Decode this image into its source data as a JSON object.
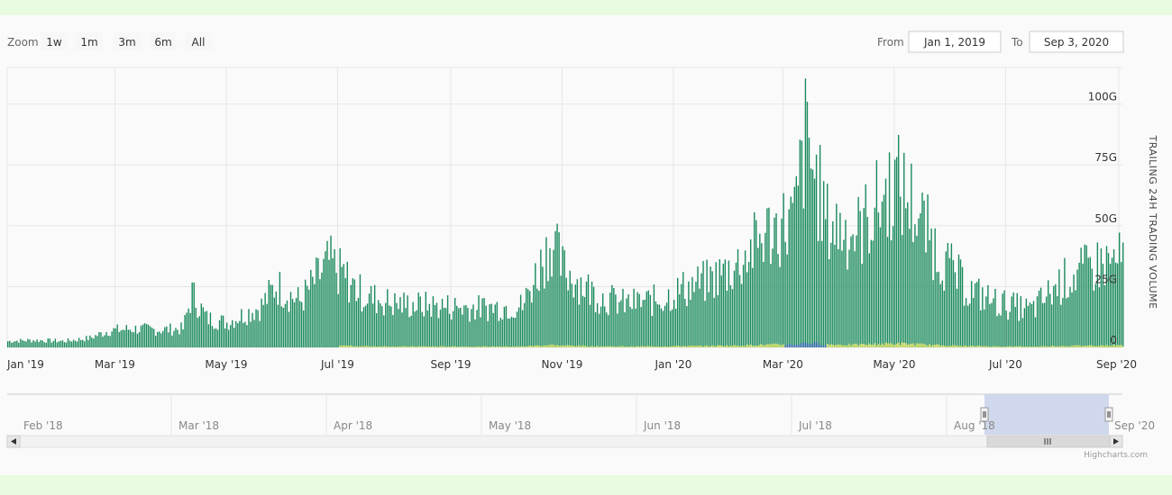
{
  "rangeSelector": {
    "zoom_label": "Zoom",
    "buttons": [
      "1w",
      "1m",
      "3m",
      "6m",
      "All"
    ],
    "from_label": "From",
    "from_value": "Jan 1, 2019",
    "to_label": "To",
    "to_value": "Sep 3, 2020"
  },
  "credits": "Highcharts.com",
  "colors": {
    "bar": "#1a8a5c",
    "bar_secondary": "#e8e84a",
    "bar_tertiary": "#3b5fc0",
    "navigator_mask": "#c8d1ea",
    "grid": "#e6e6e6"
  },
  "chart_data": {
    "type": "bar",
    "title": "",
    "ylabel": "TRAILING 24H TRADING VOLUME",
    "ylim": [
      0,
      115
    ],
    "yticks": [
      {
        "value": 0,
        "label": "0"
      },
      {
        "value": 25,
        "label": "25G"
      },
      {
        "value": 50,
        "label": "50G"
      },
      {
        "value": 75,
        "label": "75G"
      },
      {
        "value": 100,
        "label": "100G"
      }
    ],
    "xlim": [
      "2019-01-01",
      "2020-09-03"
    ],
    "xticks": [
      {
        "date": "2019-01-01",
        "label": "Jan '19"
      },
      {
        "date": "2019-03-01",
        "label": "Mar '19"
      },
      {
        "date": "2019-05-01",
        "label": "May '19"
      },
      {
        "date": "2019-07-01",
        "label": "Jul '19"
      },
      {
        "date": "2019-09-01",
        "label": "Sep '19"
      },
      {
        "date": "2019-11-01",
        "label": "Nov '19"
      },
      {
        "date": "2020-01-01",
        "label": "Jan '20"
      },
      {
        "date": "2020-03-01",
        "label": "Mar '20"
      },
      {
        "date": "2020-05-01",
        "label": "May '20"
      },
      {
        "date": "2020-07-01",
        "label": "Jul '20"
      },
      {
        "date": "2020-09-01",
        "label": "Sep '20"
      }
    ],
    "series": [
      {
        "values_desc": "daily",
        "points": [
          [
            "2019-01-01",
            3
          ],
          [
            "2019-01-15",
            3.5
          ],
          [
            "2019-02-01",
            3
          ],
          [
            "2019-02-15",
            4.5
          ],
          [
            "2019-02-25",
            8
          ],
          [
            "2019-03-10",
            9
          ],
          [
            "2019-03-25",
            8.5
          ],
          [
            "2019-04-07",
            9
          ],
          [
            "2019-04-12",
            26
          ],
          [
            "2019-04-20",
            14
          ],
          [
            "2019-05-01",
            12
          ],
          [
            "2019-05-20",
            20
          ],
          [
            "2019-05-28",
            30
          ],
          [
            "2019-06-10",
            22
          ],
          [
            "2019-06-26",
            41
          ],
          [
            "2019-07-15",
            25
          ],
          [
            "2019-08-01",
            21
          ],
          [
            "2019-08-25",
            20
          ],
          [
            "2019-09-15",
            19
          ],
          [
            "2019-10-10",
            20
          ],
          [
            "2019-10-26",
            52
          ],
          [
            "2019-11-01",
            38
          ],
          [
            "2019-11-20",
            25
          ],
          [
            "2019-12-05",
            21
          ],
          [
            "2019-12-25",
            23
          ],
          [
            "2020-01-05",
            28
          ],
          [
            "2020-01-20",
            32
          ],
          [
            "2020-02-05",
            40
          ],
          [
            "2020-02-20",
            55
          ],
          [
            "2020-03-07",
            62
          ],
          [
            "2020-03-13",
            100
          ],
          [
            "2020-03-25",
            60
          ],
          [
            "2020-04-10",
            55
          ],
          [
            "2020-05-01",
            80
          ],
          [
            "2020-05-10",
            70
          ],
          [
            "2020-05-25",
            45
          ],
          [
            "2020-06-10",
            28
          ],
          [
            "2020-06-25",
            22
          ],
          [
            "2020-07-15",
            18
          ],
          [
            "2020-08-01",
            32
          ],
          [
            "2020-08-20",
            40
          ],
          [
            "2020-09-03",
            42
          ]
        ]
      }
    ],
    "navigator": {
      "xticks": [
        "Feb '18",
        "Mar '18",
        "Apr '18",
        "May '18",
        "Jun '18",
        "Jul '18",
        "Aug '18",
        "Sep '20"
      ]
    }
  }
}
